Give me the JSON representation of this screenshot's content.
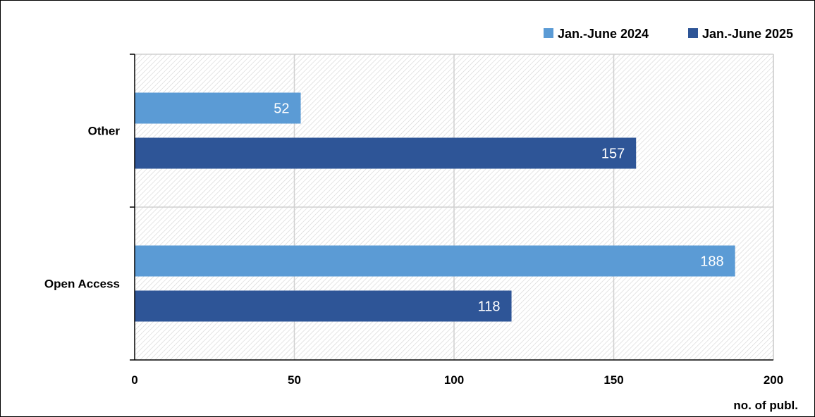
{
  "chart_data": {
    "type": "bar",
    "orientation": "horizontal",
    "categories": [
      "Other",
      "Open Access"
    ],
    "series": [
      {
        "name": "Jan.-June 2024",
        "color": "#5b9bd5",
        "values": [
          52,
          188
        ]
      },
      {
        "name": "Jan.-June 2025",
        "color": "#2e5597",
        "values": [
          157,
          118
        ]
      }
    ],
    "xlabel": "no. of publ.",
    "ylabel": "",
    "xlim": [
      0,
      200
    ],
    "xticks": [
      "0",
      "50",
      "100",
      "150",
      "200"
    ],
    "grid": true,
    "plot_background": "hatched",
    "legend_position": "top-right",
    "data_labels": true
  }
}
